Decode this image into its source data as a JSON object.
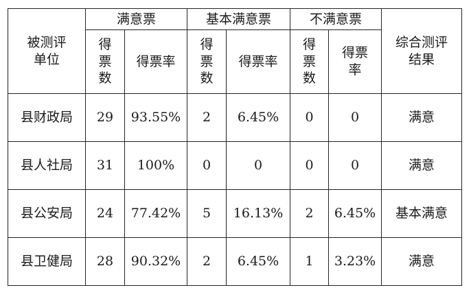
{
  "table": {
    "unit_header": "被测评单位",
    "unit_header_lines": [
      "被测评",
      "单位"
    ],
    "groups": [
      "满意票",
      "基本满意票",
      "不满意票"
    ],
    "result_header_lines": [
      "综合测评",
      "结果"
    ],
    "sub_headers": {
      "votes_lines": [
        "得",
        "票",
        "数"
      ],
      "rate": "得票率",
      "rate_lines": [
        "得票",
        "率"
      ]
    },
    "rows": [
      {
        "unit": "县财政局",
        "s_votes": "29",
        "s_rate": "93.55%",
        "b_votes": "2",
        "b_rate": "6.45%",
        "d_votes": "0",
        "d_rate": "0",
        "result": "满意"
      },
      {
        "unit": "县人社局",
        "s_votes": "31",
        "s_rate": "100%",
        "b_votes": "0",
        "b_rate": "0",
        "d_votes": "0",
        "d_rate": "0",
        "result": "满意"
      },
      {
        "unit": "县公安局",
        "s_votes": "24",
        "s_rate": "77.42%",
        "b_votes": "5",
        "b_rate": "16.13%",
        "d_votes": "2",
        "d_rate": "6.45%",
        "result": "基本满意"
      },
      {
        "unit": "县卫健局",
        "s_votes": "28",
        "s_rate": "90.32%",
        "b_votes": "2",
        "b_rate": "6.45%",
        "d_votes": "1",
        "d_rate": "3.23%",
        "result": "满意"
      }
    ]
  }
}
